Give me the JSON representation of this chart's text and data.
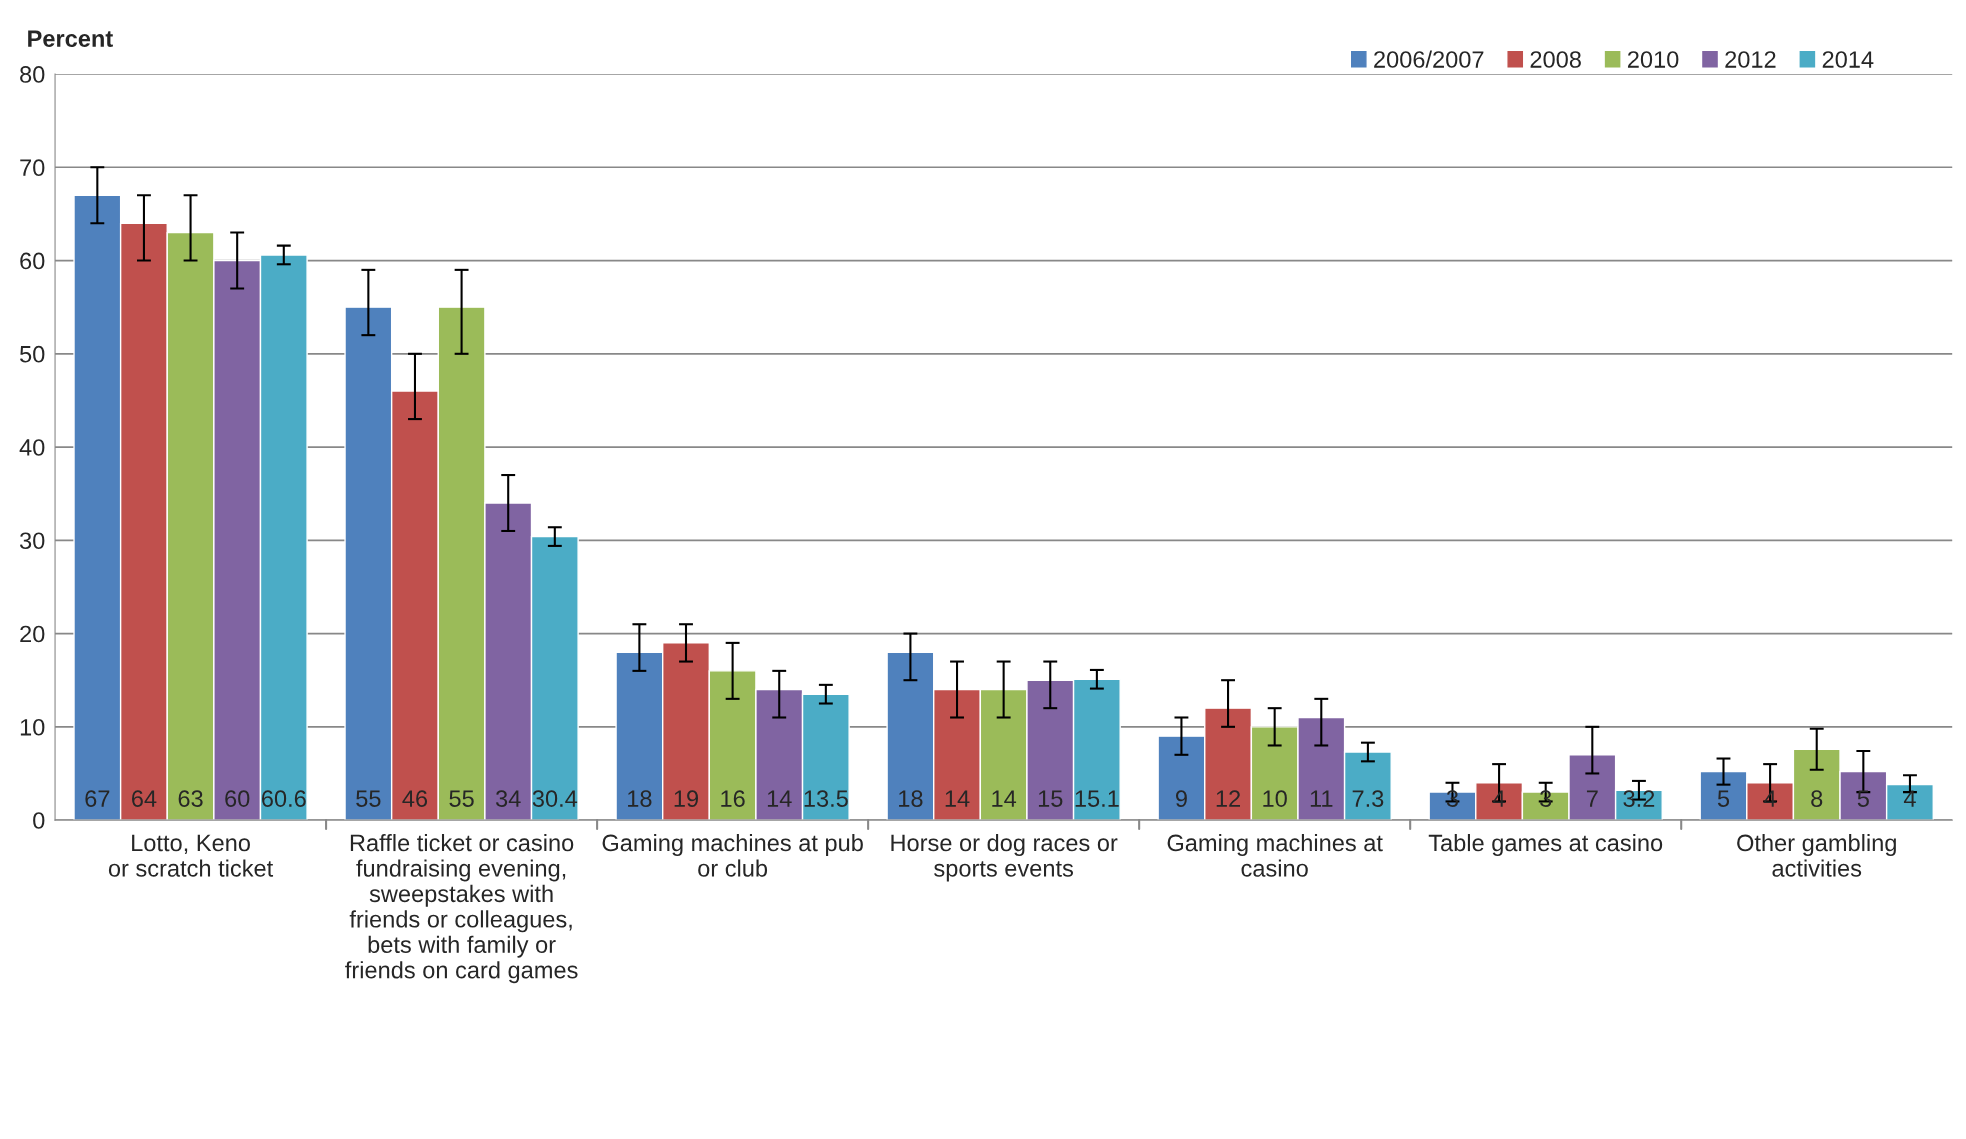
{
  "chart_data": {
    "type": "bar",
    "ylabel": "Percent",
    "categories": [
      "Lotto, Keno\nor scratch ticket",
      "Raffle ticket or casino\nfundraising evening,\nsweepstakes with\nfriends or colleagues,\nbets with family or\nfriends on card games",
      "Gaming machines at pub\nor club",
      "Horse or dog races or\nsports events",
      "Gaming machines at\ncasino",
      "Table games at casino",
      "Other gambling\nactivities"
    ],
    "series": [
      {
        "name": "2006/2007",
        "color": "#4f81bd",
        "values": [
          67,
          55,
          18,
          18,
          9,
          3,
          5.2
        ],
        "value_labels": [
          "67",
          "55",
          "18",
          "18",
          "9",
          "3",
          "5"
        ],
        "errors": [
          [
            64,
            70
          ],
          [
            52,
            59
          ],
          [
            16,
            21
          ],
          [
            15,
            20
          ],
          [
            7,
            11
          ],
          [
            2,
            4
          ],
          [
            3.8,
            6.6
          ]
        ]
      },
      {
        "name": "2008",
        "color": "#c0504d",
        "values": [
          64,
          46,
          19,
          14,
          12,
          4,
          4
        ],
        "value_labels": [
          "64",
          "46",
          "19",
          "14",
          "12",
          "4",
          "4"
        ],
        "errors": [
          [
            60,
            67
          ],
          [
            43,
            50
          ],
          [
            17,
            21
          ],
          [
            11,
            17
          ],
          [
            10,
            15
          ],
          [
            2,
            6
          ],
          [
            2,
            6
          ]
        ]
      },
      {
        "name": "2010",
        "color": "#9bbb59",
        "values": [
          63,
          55,
          16,
          14,
          10,
          3,
          7.6
        ],
        "value_labels": [
          "63",
          "55",
          "16",
          "14",
          "10",
          "3",
          "8"
        ],
        "errors": [
          [
            60,
            67
          ],
          [
            50,
            59
          ],
          [
            13,
            19
          ],
          [
            11,
            17
          ],
          [
            8,
            12
          ],
          [
            2,
            4
          ],
          [
            5.4,
            9.8
          ]
        ]
      },
      {
        "name": "2012",
        "color": "#8064a2",
        "values": [
          60,
          34,
          14,
          15,
          11,
          7,
          5.2
        ],
        "value_labels": [
          "60",
          "34",
          "14",
          "15",
          "11",
          "7",
          "5"
        ],
        "errors": [
          [
            57,
            63
          ],
          [
            31,
            37
          ],
          [
            11,
            16
          ],
          [
            12,
            17
          ],
          [
            8,
            13
          ],
          [
            5,
            10
          ],
          [
            3,
            7.4
          ]
        ]
      },
      {
        "name": "2014",
        "color": "#4bacc6",
        "values": [
          60.6,
          30.4,
          13.5,
          15.1,
          7.3,
          3.2,
          3.8
        ],
        "value_labels": [
          "60.6",
          "30.4",
          "13.5",
          "15.1",
          "7.3",
          "3.2",
          "4"
        ],
        "errors": [
          [
            59.6,
            61.6
          ],
          [
            29.4,
            31.4
          ],
          [
            12.5,
            14.5
          ],
          [
            14.1,
            16.1
          ],
          [
            6.3,
            8.3
          ],
          [
            2.2,
            4.2
          ],
          [
            3,
            4.8
          ]
        ]
      }
    ],
    "ylim": [
      0,
      80
    ],
    "yticks": [
      0,
      10,
      20,
      30,
      40,
      50,
      60,
      70,
      80
    ],
    "grid": "y",
    "legend": "top right"
  }
}
